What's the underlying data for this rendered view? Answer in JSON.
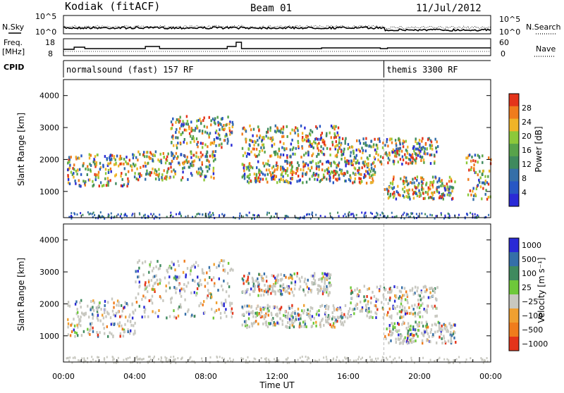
{
  "header": {
    "station": "Kodiak (fitACF)",
    "beam": "Beam 01",
    "date": "11/Jul/2012"
  },
  "summary_panel": {
    "left_labels": {
      "nsky": "N.Sky",
      "freq_line1": "Freq.",
      "freq_line2": "[MHz]",
      "cpid": "CPID"
    },
    "right_labels": {
      "nsearch": "N.Search",
      "nave": "Nave"
    },
    "noise_axis": {
      "top": "10^5",
      "bottom": "10^0"
    },
    "freq_axis": {
      "top": "18",
      "bottom": "8"
    },
    "nave_axis": {
      "top": "60",
      "bottom": "0"
    },
    "cpid_segments": [
      {
        "label": "normalsound (fast) 157 RF",
        "start_hour": 0.0,
        "end_hour": 18.0
      },
      {
        "label": "themis 3300 RF",
        "start_hour": 18.0,
        "end_hour": 24.0
      }
    ]
  },
  "chart_data": [
    {
      "type": "heatmap",
      "title": "Power",
      "ylabel": "Slant Range [km]",
      "ylim": [
        180,
        4500
      ],
      "yticks": [
        1000,
        2000,
        3000,
        4000
      ],
      "xlim": [
        0,
        24
      ],
      "colorbar": {
        "label": "Power [dB]",
        "range": [
          0,
          32
        ],
        "ticks": [
          4,
          8,
          12,
          16,
          20,
          24,
          28
        ],
        "colors": [
          "#2a2ad6",
          "#2757c4",
          "#356fa8",
          "#3f8a5e",
          "#58a34a",
          "#8cc83a",
          "#f0b428",
          "#f07c1c",
          "#e4341a"
        ]
      },
      "echo_regions": [
        {
          "t0": 0.2,
          "t1": 3.8,
          "r0": 1200,
          "r1": 2200
        },
        {
          "t0": 3.8,
          "t1": 8.5,
          "r0": 1400,
          "r1": 2300
        },
        {
          "t0": 6.0,
          "t1": 9.5,
          "r0": 2400,
          "r1": 3400
        },
        {
          "t0": 10.0,
          "t1": 15.5,
          "r0": 2100,
          "r1": 3100
        },
        {
          "t0": 10.0,
          "t1": 17.5,
          "r0": 1300,
          "r1": 2000
        },
        {
          "t0": 15.5,
          "t1": 21.0,
          "r0": 1900,
          "r1": 2700
        },
        {
          "t0": 18.0,
          "t1": 22.0,
          "r0": 800,
          "r1": 1500
        },
        {
          "t0": 22.5,
          "t1": 24.0,
          "r0": 700,
          "r1": 2200
        }
      ]
    },
    {
      "type": "heatmap",
      "title": "Velocity",
      "ylabel": "Slant Range [km]",
      "ylim": [
        180,
        4500
      ],
      "yticks": [
        1000,
        2000,
        3000,
        4000
      ],
      "xlim": [
        0,
        24
      ],
      "xlabel": "Time UT",
      "xticks": [
        "00:00",
        "04:00",
        "08:00",
        "12:00",
        "16:00",
        "20:00",
        "00:00"
      ],
      "colorbar": {
        "label": "Velocity [m s⁻¹]",
        "ticks": [
          "1000",
          "500",
          "100",
          "25",
          "−25",
          "−100",
          "−500",
          "−1000"
        ],
        "colors": [
          "#2a2ad6",
          "#356fa8",
          "#3f8a5e",
          "#6ec83a",
          "#c8c8c0",
          "#f0a030",
          "#f07c1c",
          "#e4341a"
        ]
      },
      "echo_regions": [
        {
          "t0": 0.2,
          "t1": 4.0,
          "r0": 1000,
          "r1": 2200
        },
        {
          "t0": 4.0,
          "t1": 9.5,
          "r0": 1600,
          "r1": 3400
        },
        {
          "t0": 10.0,
          "t1": 16.0,
          "r0": 1300,
          "r1": 2000
        },
        {
          "t0": 10.0,
          "t1": 15.0,
          "r0": 2300,
          "r1": 3000
        },
        {
          "t0": 16.0,
          "t1": 21.0,
          "r0": 1600,
          "r1": 2600
        },
        {
          "t0": 18.0,
          "t1": 22.0,
          "r0": 800,
          "r1": 1500
        }
      ]
    }
  ]
}
